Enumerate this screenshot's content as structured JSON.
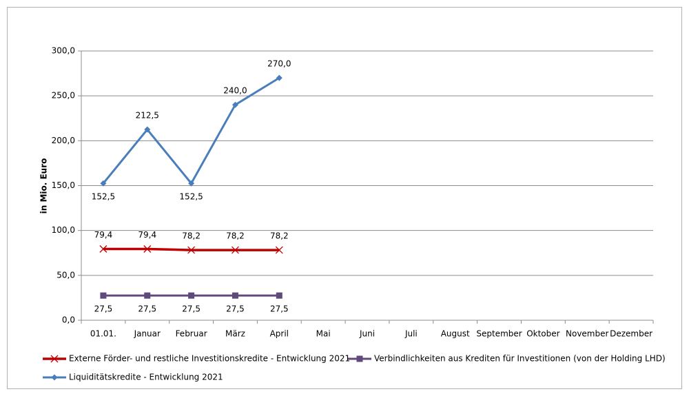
{
  "chart_data": {
    "type": "line",
    "ylabel": "in Mio. Euro",
    "categories": [
      "01.01.",
      "Januar",
      "Februar",
      "März",
      "April",
      "Mai",
      "Juni",
      "Juli",
      "August",
      "September",
      "Oktober",
      "November",
      "Dezember"
    ],
    "ylim": [
      0,
      300
    ],
    "yticks": [
      {
        "value": 0,
        "label": "0,0"
      },
      {
        "value": 50,
        "label": "50,0"
      },
      {
        "value": 100,
        "label": "100,0"
      },
      {
        "value": 150,
        "label": "150,0"
      },
      {
        "value": 200,
        "label": "200,0"
      },
      {
        "value": 250,
        "label": "250,0"
      },
      {
        "value": 300,
        "label": "300,0"
      }
    ],
    "grid": true,
    "series": [
      {
        "name": "Externe Förder- und restliche Investitionskredite - Entwicklung 2021",
        "color": "#c00000",
        "marker": "x",
        "values": [
          79.4,
          79.4,
          78.2,
          78.2,
          78.2,
          null,
          null,
          null,
          null,
          null,
          null,
          null,
          null
        ],
        "value_labels": [
          "79,4",
          "79,4",
          "78,2",
          "78,2",
          "78,2",
          null,
          null,
          null,
          null,
          null,
          null,
          null,
          null
        ]
      },
      {
        "name": "Verbindlichkeiten aus Krediten für Investitionen (von der Holding LHD)",
        "color": "#604a7b",
        "marker": "square",
        "values": [
          27.5,
          27.5,
          27.5,
          27.5,
          27.5,
          null,
          null,
          null,
          null,
          null,
          null,
          null,
          null
        ],
        "value_labels": [
          "27,5",
          "27,5",
          "27,5",
          "27,5",
          "27,5",
          null,
          null,
          null,
          null,
          null,
          null,
          null,
          null
        ]
      },
      {
        "name": "Liquiditätskredite - Entwicklung 2021",
        "color": "#4a7ebb",
        "marker": "diamond",
        "values": [
          152.5,
          212.5,
          152.5,
          240,
          270,
          null,
          null,
          null,
          null,
          null,
          null,
          null,
          null
        ],
        "value_labels": [
          "152,5",
          "212,5",
          "152,5",
          "240,0",
          "270,0",
          null,
          null,
          null,
          null,
          null,
          null,
          null,
          null
        ]
      }
    ]
  }
}
